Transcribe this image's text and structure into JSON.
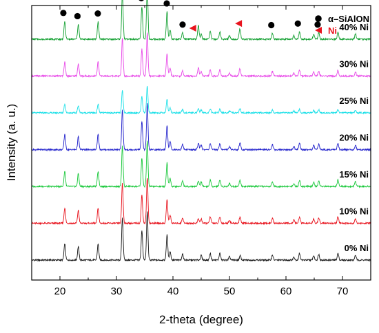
{
  "chart_data": {
    "type": "line",
    "title": "",
    "xlabel": "2-theta (degree)",
    "ylabel": "Intensity (a. u.)",
    "xlim": [
      15,
      75
    ],
    "x_ticks": [
      20,
      30,
      40,
      50,
      60,
      70
    ],
    "grid": false,
    "y_tick_labels": false,
    "legend": {
      "placement": "top-right",
      "entries": [
        {
          "name": "α–SiAlON",
          "marker": "filled-circle",
          "color": "#000000"
        },
        {
          "name": "Ni",
          "marker": "left-triangle",
          "color": "#e8141e"
        }
      ]
    },
    "markers": {
      "sialon_positions": [
        20.6,
        23.1,
        26.7,
        31.0,
        34.4,
        35.4,
        38.9,
        41.7,
        57.4,
        62.1,
        65.6
      ],
      "ni_positions": [
        43.5,
        51.6
      ]
    },
    "peaks": [
      {
        "x": 20.85,
        "rel": 0.34
      },
      {
        "x": 23.25,
        "rel": 0.28
      },
      {
        "x": 26.75,
        "rel": 0.33
      },
      {
        "x": 31.05,
        "rel": 0.88
      },
      {
        "x": 34.5,
        "rel": 0.62
      },
      {
        "x": 35.45,
        "rel": 1.0
      },
      {
        "x": 38.95,
        "rel": 0.52
      },
      {
        "x": 39.5,
        "rel": 0.18
      },
      {
        "x": 41.7,
        "rel": 0.12
      },
      {
        "x": 45.0,
        "rel": 0.1
      },
      {
        "x": 46.6,
        "rel": 0.14
      },
      {
        "x": 48.3,
        "rel": 0.14
      },
      {
        "x": 50.0,
        "rel": 0.07
      },
      {
        "x": 51.9,
        "rel": 0.09
      },
      {
        "x": 57.6,
        "rel": 0.11
      },
      {
        "x": 61.4,
        "rel": 0.07
      },
      {
        "x": 62.4,
        "rel": 0.14
      },
      {
        "x": 64.9,
        "rel": 0.09
      },
      {
        "x": 65.8,
        "rel": 0.12
      },
      {
        "x": 69.2,
        "rel": 0.14
      },
      {
        "x": 72.3,
        "rel": 0.1
      }
    ],
    "series": [
      {
        "name": "0% Ni",
        "color": "#1a1a1a",
        "offset": 0,
        "scale": 1.0,
        "ni_peak": 0.0
      },
      {
        "name": "10% Ni",
        "color": "#e8141e",
        "offset": 1,
        "scale": 0.95,
        "ni_peak": 0.1
      },
      {
        "name": "15% Ni",
        "color": "#19c83a",
        "offset": 2,
        "scale": 0.95,
        "ni_peak": 0.12
      },
      {
        "name": "20% Ni",
        "color": "#2424cc",
        "offset": 3,
        "scale": 0.95,
        "ni_peak": 0.14
      },
      {
        "name": "25% Ni",
        "color": "#1ce0e8",
        "offset": 4,
        "scale": 0.55,
        "ni_peak": 0.16
      },
      {
        "name": "30% Ni",
        "color": "#e84ae8",
        "offset": 5,
        "scale": 0.9,
        "ni_peak": 0.2
      },
      {
        "name": "40% Ni",
        "color": "#14a032",
        "offset": 6,
        "scale": 1.1,
        "ni_peak": 0.26
      }
    ]
  }
}
